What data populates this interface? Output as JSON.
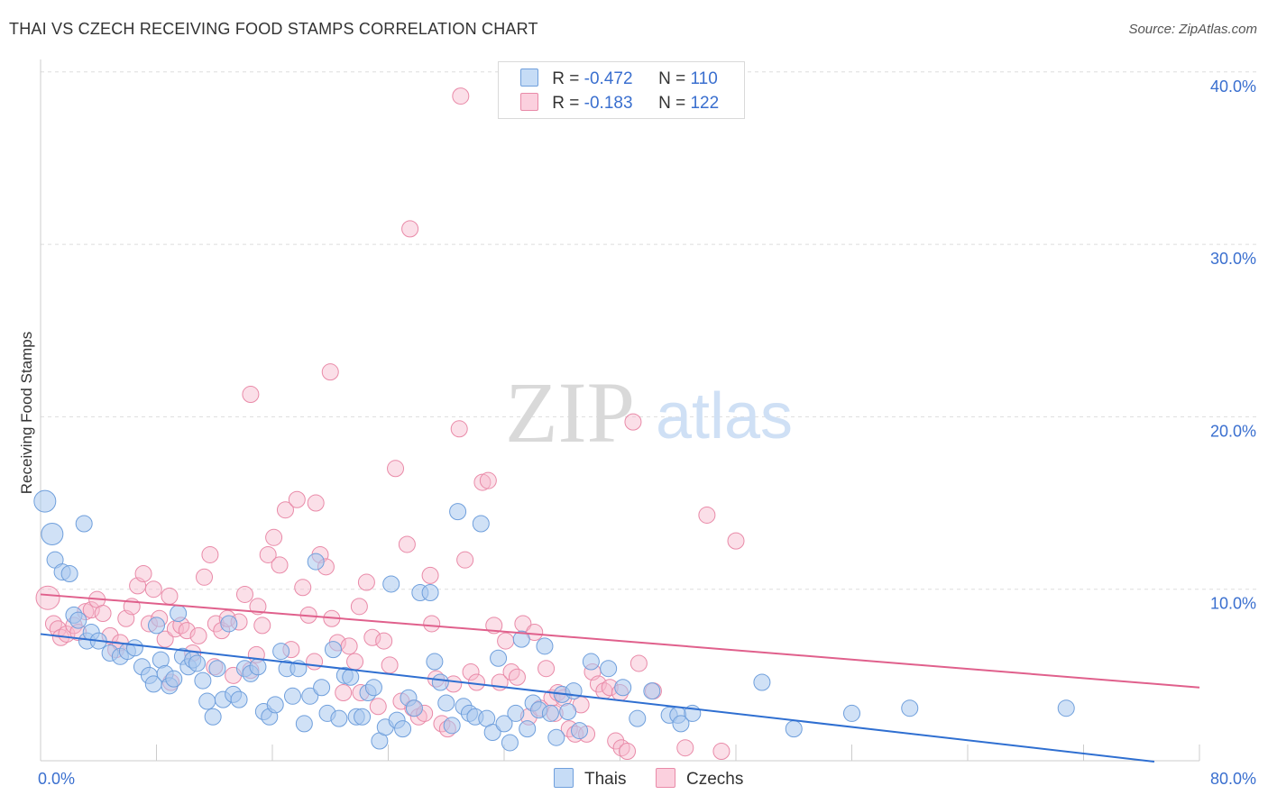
{
  "title": "THAI VS CZECH RECEIVING FOOD STAMPS CORRELATION CHART",
  "source": "Source: ZipAtlas.com",
  "watermark": {
    "zip": "ZIP",
    "atlas": "atlas"
  },
  "legend": {
    "thais": {
      "r_label": "R = ",
      "r_value": "-0.472",
      "n_label": "N = ",
      "n_value": "110"
    },
    "czechs": {
      "r_label": "R = ",
      "r_value": "-0.183",
      "n_label": "N = ",
      "n_value": "122"
    }
  },
  "colors": {
    "thais_fill": "#a9c8ef",
    "thais_stroke": "#6f9fdc",
    "thais_line": "#2f6fd1",
    "czechs_fill": "#f7b8cc",
    "czechs_stroke": "#e98aa8",
    "czechs_line": "#e0608c",
    "axis_text": "#3a6fcf",
    "grid": "#dddddd"
  },
  "chart_data": {
    "type": "scatter",
    "title": "THAI VS CZECH RECEIVING FOOD STAMPS CORRELATION CHART",
    "xlabel": "",
    "ylabel": "Receiving Food Stamps",
    "xlim": [
      0,
      80
    ],
    "ylim": [
      0,
      40
    ],
    "x_tick_labels": [
      "0.0%",
      "80.0%"
    ],
    "y_ticks": [
      10,
      20,
      30,
      40
    ],
    "y_tick_labels": [
      "10.0%",
      "20.0%",
      "30.0%",
      "40.0%"
    ],
    "series": [
      {
        "name": "Thais",
        "r": -0.472,
        "n": 110,
        "trend": {
          "x": [
            0,
            80
          ],
          "y": [
            7.4,
            -0.3
          ]
        },
        "points": [
          [
            0.3,
            15.1
          ],
          [
            0.8,
            13.2
          ],
          [
            1.0,
            11.7
          ],
          [
            1.5,
            11.0
          ],
          [
            2.0,
            10.9
          ],
          [
            3.0,
            13.8
          ],
          [
            2.3,
            8.5
          ],
          [
            2.6,
            8.2
          ],
          [
            3.2,
            7.0
          ],
          [
            3.5,
            7.5
          ],
          [
            4.0,
            7.0
          ],
          [
            4.8,
            6.3
          ],
          [
            5.5,
            6.1
          ],
          [
            6.0,
            6.4
          ],
          [
            6.5,
            6.6
          ],
          [
            7.0,
            5.5
          ],
          [
            7.5,
            5.0
          ],
          [
            7.8,
            4.5
          ],
          [
            8.0,
            7.9
          ],
          [
            8.3,
            5.9
          ],
          [
            8.6,
            5.1
          ],
          [
            8.9,
            4.4
          ],
          [
            9.2,
            4.8
          ],
          [
            9.5,
            8.6
          ],
          [
            9.8,
            6.1
          ],
          [
            10.2,
            5.5
          ],
          [
            10.5,
            5.9
          ],
          [
            10.8,
            5.7
          ],
          [
            11.2,
            4.7
          ],
          [
            11.5,
            3.5
          ],
          [
            11.9,
            2.6
          ],
          [
            12.2,
            5.4
          ],
          [
            12.6,
            3.6
          ],
          [
            13.0,
            8.0
          ],
          [
            13.3,
            3.9
          ],
          [
            13.7,
            3.6
          ],
          [
            14.1,
            5.4
          ],
          [
            14.5,
            5.1
          ],
          [
            15.0,
            5.5
          ],
          [
            15.4,
            2.9
          ],
          [
            15.8,
            2.6
          ],
          [
            16.2,
            3.3
          ],
          [
            16.6,
            6.4
          ],
          [
            17.0,
            5.4
          ],
          [
            17.4,
            3.8
          ],
          [
            17.8,
            5.4
          ],
          [
            18.2,
            2.2
          ],
          [
            18.6,
            3.8
          ],
          [
            19.0,
            11.6
          ],
          [
            19.4,
            4.3
          ],
          [
            19.8,
            2.8
          ],
          [
            20.2,
            6.5
          ],
          [
            20.6,
            2.5
          ],
          [
            21.0,
            5.0
          ],
          [
            21.4,
            4.9
          ],
          [
            21.8,
            2.6
          ],
          [
            22.2,
            2.6
          ],
          [
            22.6,
            4.0
          ],
          [
            23.0,
            4.3
          ],
          [
            23.4,
            1.2
          ],
          [
            23.8,
            2.0
          ],
          [
            24.2,
            10.3
          ],
          [
            24.6,
            2.4
          ],
          [
            25.0,
            1.9
          ],
          [
            25.4,
            3.7
          ],
          [
            25.8,
            3.1
          ],
          [
            26.2,
            9.8
          ],
          [
            26.9,
            9.8
          ],
          [
            27.2,
            5.8
          ],
          [
            27.6,
            4.6
          ],
          [
            28.0,
            3.4
          ],
          [
            28.4,
            2.1
          ],
          [
            28.8,
            14.5
          ],
          [
            29.2,
            3.2
          ],
          [
            29.6,
            2.8
          ],
          [
            30.0,
            2.6
          ],
          [
            30.4,
            13.8
          ],
          [
            30.8,
            2.5
          ],
          [
            31.2,
            1.7
          ],
          [
            31.6,
            6.0
          ],
          [
            32.0,
            2.2
          ],
          [
            32.4,
            1.1
          ],
          [
            32.8,
            2.8
          ],
          [
            33.2,
            7.1
          ],
          [
            33.6,
            1.9
          ],
          [
            34.0,
            3.4
          ],
          [
            34.4,
            3.0
          ],
          [
            34.8,
            6.7
          ],
          [
            35.2,
            2.8
          ],
          [
            35.6,
            1.4
          ],
          [
            36.0,
            3.9
          ],
          [
            36.4,
            2.9
          ],
          [
            36.8,
            4.1
          ],
          [
            37.2,
            1.8
          ],
          [
            38.0,
            5.8
          ],
          [
            39.2,
            5.4
          ],
          [
            40.2,
            4.3
          ],
          [
            41.2,
            2.5
          ],
          [
            42.2,
            4.1
          ],
          [
            43.4,
            2.7
          ],
          [
            44.0,
            2.7
          ],
          [
            44.2,
            2.2
          ],
          [
            45.0,
            2.8
          ],
          [
            49.8,
            4.6
          ],
          [
            52.0,
            1.9
          ],
          [
            56.0,
            2.8
          ],
          [
            60.0,
            3.1
          ],
          [
            70.8,
            3.1
          ]
        ]
      },
      {
        "name": "Czechs",
        "r": -0.183,
        "n": 122,
        "trend": {
          "x": [
            0,
            80
          ],
          "y": [
            9.7,
            4.3
          ]
        },
        "points": [
          [
            0.5,
            9.5
          ],
          [
            0.9,
            8.0
          ],
          [
            1.2,
            7.7
          ],
          [
            1.4,
            7.2
          ],
          [
            1.8,
            7.4
          ],
          [
            2.3,
            7.9
          ],
          [
            2.6,
            7.5
          ],
          [
            3.1,
            8.7
          ],
          [
            3.5,
            8.8
          ],
          [
            3.9,
            9.4
          ],
          [
            4.3,
            8.6
          ],
          [
            4.8,
            7.3
          ],
          [
            5.2,
            6.5
          ],
          [
            5.5,
            6.9
          ],
          [
            5.9,
            8.3
          ],
          [
            6.3,
            9.0
          ],
          [
            6.7,
            10.2
          ],
          [
            7.1,
            10.9
          ],
          [
            7.5,
            8.0
          ],
          [
            7.8,
            10.0
          ],
          [
            8.2,
            8.3
          ],
          [
            8.6,
            7.1
          ],
          [
            8.9,
            9.6
          ],
          [
            9.3,
            7.7
          ],
          [
            9.7,
            7.9
          ],
          [
            10.1,
            7.6
          ],
          [
            10.5,
            6.3
          ],
          [
            10.9,
            7.3
          ],
          [
            11.3,
            10.7
          ],
          [
            11.7,
            12.0
          ],
          [
            12.1,
            8.0
          ],
          [
            12.5,
            7.6
          ],
          [
            12.9,
            8.3
          ],
          [
            13.3,
            5.0
          ],
          [
            13.7,
            8.1
          ],
          [
            14.1,
            9.7
          ],
          [
            14.5,
            5.3
          ],
          [
            14.9,
            6.2
          ],
          [
            15.3,
            7.9
          ],
          [
            15.7,
            12.0
          ],
          [
            16.1,
            13.0
          ],
          [
            16.5,
            11.4
          ],
          [
            16.9,
            14.6
          ],
          [
            17.3,
            6.5
          ],
          [
            17.7,
            15.2
          ],
          [
            18.1,
            10.1
          ],
          [
            18.5,
            8.5
          ],
          [
            18.9,
            5.8
          ],
          [
            19.3,
            12.0
          ],
          [
            19.7,
            11.3
          ],
          [
            20.1,
            8.3
          ],
          [
            20.5,
            6.9
          ],
          [
            20.9,
            4.0
          ],
          [
            21.3,
            6.7
          ],
          [
            21.7,
            5.8
          ],
          [
            22.1,
            4.0
          ],
          [
            22.5,
            10.4
          ],
          [
            22.9,
            7.2
          ],
          [
            23.3,
            3.2
          ],
          [
            23.7,
            7.0
          ],
          [
            24.1,
            5.6
          ],
          [
            24.5,
            17.0
          ],
          [
            24.9,
            3.5
          ],
          [
            25.3,
            12.6
          ],
          [
            25.7,
            3.1
          ],
          [
            26.1,
            2.6
          ],
          [
            26.5,
            2.8
          ],
          [
            26.9,
            10.8
          ],
          [
            27.3,
            4.8
          ],
          [
            27.7,
            2.2
          ],
          [
            28.1,
            1.9
          ],
          [
            28.5,
            4.5
          ],
          [
            28.9,
            19.3
          ],
          [
            29.3,
            11.7
          ],
          [
            29.7,
            5.2
          ],
          [
            30.1,
            4.6
          ],
          [
            30.5,
            16.2
          ],
          [
            30.9,
            16.3
          ],
          [
            31.3,
            7.9
          ],
          [
            31.7,
            4.6
          ],
          [
            32.1,
            7.0
          ],
          [
            32.5,
            5.2
          ],
          [
            32.9,
            4.9
          ],
          [
            33.3,
            8.0
          ],
          [
            33.7,
            2.6
          ],
          [
            34.1,
            7.5
          ],
          [
            34.5,
            3.1
          ],
          [
            34.9,
            5.4
          ],
          [
            35.3,
            3.7
          ],
          [
            35.7,
            4.0
          ],
          [
            36.1,
            3.7
          ],
          [
            36.5,
            1.9
          ],
          [
            36.9,
            1.6
          ],
          [
            37.3,
            3.3
          ],
          [
            37.7,
            1.6
          ],
          [
            38.1,
            5.2
          ],
          [
            38.5,
            4.5
          ],
          [
            38.9,
            4.1
          ],
          [
            39.3,
            4.3
          ],
          [
            39.7,
            1.2
          ],
          [
            40.1,
            0.8
          ],
          [
            40.5,
            0.6
          ],
          [
            40.9,
            19.7
          ],
          [
            41.3,
            5.7
          ],
          [
            42.3,
            4.1
          ],
          [
            44.5,
            0.8
          ],
          [
            46.0,
            14.3
          ],
          [
            48.0,
            12.8
          ],
          [
            20.0,
            22.6
          ],
          [
            14.5,
            21.3
          ],
          [
            25.5,
            30.9
          ],
          [
            29.0,
            38.6
          ],
          [
            27.0,
            8.0
          ],
          [
            19.0,
            15.0
          ],
          [
            15.0,
            9.0
          ],
          [
            12.0,
            5.5
          ],
          [
            9.0,
            4.6
          ],
          [
            22.0,
            9.0
          ],
          [
            35.5,
            2.8
          ],
          [
            40.0,
            4.0
          ],
          [
            47.0,
            0.6
          ]
        ]
      }
    ]
  }
}
